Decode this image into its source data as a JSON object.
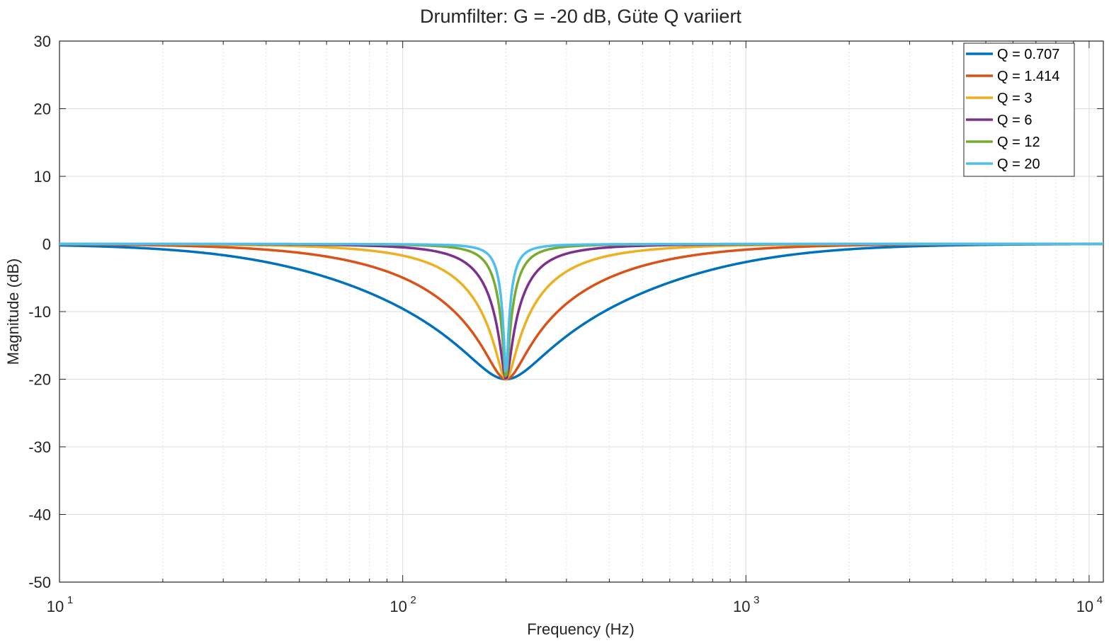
{
  "chart_data": {
    "type": "line",
    "title": "Drumfilter: G = -20 dB, Güte Q variiert",
    "xlabel": "Frequency  (Hz)",
    "ylabel": "Magnitude (dB)",
    "xscale": "log",
    "xlim": [
      10,
      11000
    ],
    "ylim": [
      -50,
      30
    ],
    "yticks": [
      30,
      20,
      10,
      0,
      -10,
      -20,
      -30,
      -40,
      -50
    ],
    "ytick_labels": [
      "30",
      "20",
      "10",
      "0",
      "-10",
      "-20",
      "-30",
      "-40",
      "-50"
    ],
    "xticks": [
      {
        "value": 10,
        "base": "10",
        "exp": "1"
      },
      {
        "value": 100,
        "base": "10",
        "exp": "2"
      },
      {
        "value": 1000,
        "base": "10",
        "exp": "3"
      },
      {
        "value": 10000,
        "base": "10",
        "exp": "4"
      }
    ],
    "grid": true,
    "minor_grid": true,
    "legend_position": "top-right",
    "filter": {
      "gain_db": -20,
      "center_hz": 200
    },
    "series": [
      {
        "name": "Q = 0.707",
        "q": 0.707,
        "color": "#0072BD"
      },
      {
        "name": "Q = 1.414",
        "q": 1.414,
        "color": "#D95319"
      },
      {
        "name": "Q = 3",
        "q": 3,
        "color": "#EDB120"
      },
      {
        "name": "Q = 6",
        "q": 6,
        "color": "#7E2F8E"
      },
      {
        "name": "Q = 12",
        "q": 12,
        "color": "#77AC30"
      },
      {
        "name": "Q = 20",
        "q": 20,
        "color": "#4DBEEE"
      }
    ]
  }
}
